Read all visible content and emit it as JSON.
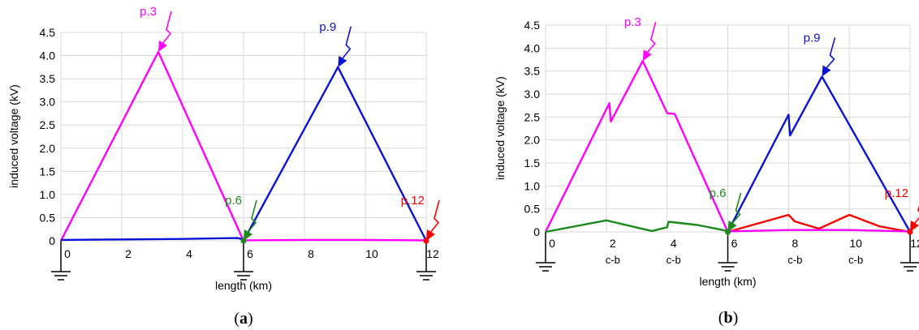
{
  "chart_data": [
    {
      "type": "line",
      "panel_label": "a",
      "xlabel": "length (km)",
      "ylabel": "induced voltage (kV)",
      "xlim": [
        0,
        12
      ],
      "ylim": [
        0,
        4.5
      ],
      "xticks": [
        "0",
        "2",
        "4",
        "6",
        "8",
        "10",
        "12"
      ],
      "yticks": [
        "0",
        "0.5",
        "1.0",
        "1.5",
        "2.0",
        "2.5",
        "3.0",
        "3.5",
        "4.0",
        "4.5"
      ],
      "grid": true,
      "colors": {
        "magenta": "#ff00ff",
        "blue": "#0a12d6",
        "green": "#1a8a1a",
        "red": "#ff0000"
      },
      "series": [
        {
          "color": "magenta",
          "x": [
            0,
            3.2,
            6
          ],
          "y": [
            0,
            4.08,
            0
          ]
        },
        {
          "color": "blue",
          "x": [
            6,
            9.1,
            12
          ],
          "y": [
            0,
            3.75,
            0
          ]
        },
        {
          "color": "blue",
          "x": [
            0,
            2,
            4,
            5.8,
            6
          ],
          "y": [
            0.02,
            0.03,
            0.04,
            0.06,
            0.03
          ]
        },
        {
          "color": "magenta",
          "x": [
            6,
            8,
            10,
            12
          ],
          "y": [
            0.01,
            0.02,
            0.02,
            0.01
          ]
        }
      ],
      "strikes": [
        {
          "label": "p.3",
          "color": "magenta",
          "x": 3.2,
          "y": 4.08
        },
        {
          "label": "p.6",
          "color": "green",
          "x": 6,
          "y": 0
        },
        {
          "label": "p.9",
          "color": "blue",
          "x": 9.1,
          "y": 3.75
        },
        {
          "label": "p.12",
          "color": "red",
          "x": 12,
          "y": 0
        }
      ],
      "grounds": [
        0,
        6,
        12
      ],
      "cb_labels": []
    },
    {
      "type": "line",
      "panel_label": "b",
      "xlabel": "length (km)",
      "ylabel": "induced voltage (kV)",
      "xlim": [
        0,
        12
      ],
      "ylim": [
        0,
        4.5
      ],
      "xticks": [
        "0",
        "2",
        "4",
        "6",
        "8",
        "10",
        "12"
      ],
      "yticks": [
        "0",
        "0.5",
        "1.0",
        "1.5",
        "2.0",
        "2.5",
        "3.0",
        "3.5",
        "4.0",
        "4.5"
      ],
      "grid": true,
      "colors": {
        "magenta": "#ff00ff",
        "blue": "#0a12d6",
        "green": "#1a8a1a",
        "red": "#ff0000"
      },
      "series": [
        {
          "color": "magenta",
          "x": [
            0,
            2.1,
            2.15,
            3.2,
            3.98,
            4.02,
            4.25,
            6
          ],
          "y": [
            0,
            2.8,
            2.4,
            3.72,
            2.62,
            2.58,
            2.57,
            0
          ]
        },
        {
          "color": "blue",
          "x": [
            6,
            8,
            8.05,
            9.1,
            12
          ],
          "y": [
            0,
            2.55,
            2.1,
            3.38,
            0
          ]
        },
        {
          "color": "green",
          "x": [
            0,
            2,
            3.5,
            4,
            4.05,
            5,
            6
          ],
          "y": [
            0,
            0.25,
            0.02,
            0.1,
            0.22,
            0.15,
            0.02
          ]
        },
        {
          "color": "red",
          "x": [
            6,
            8,
            8.2,
            9,
            10,
            11,
            12
          ],
          "y": [
            0,
            0.37,
            0.23,
            0.07,
            0.37,
            0.12,
            0
          ]
        },
        {
          "color": "magenta",
          "x": [
            6,
            8,
            10,
            12
          ],
          "y": [
            0.01,
            0.04,
            0.04,
            0.01
          ]
        }
      ],
      "strikes": [
        {
          "label": "p.3",
          "color": "magenta",
          "x": 3.2,
          "y": 3.72
        },
        {
          "label": "p.6",
          "color": "green",
          "x": 6,
          "y": 0
        },
        {
          "label": "p.9",
          "color": "blue",
          "x": 9.1,
          "y": 3.38
        },
        {
          "label": "p.12",
          "color": "red",
          "x": 12,
          "y": 0
        }
      ],
      "grounds": [
        0,
        6,
        12
      ],
      "cb_labels": [
        {
          "x": 2,
          "text": "c-b"
        },
        {
          "x": 4,
          "text": "c-b"
        },
        {
          "x": 8,
          "text": "c-b"
        },
        {
          "x": 10,
          "text": "c-b"
        }
      ]
    }
  ]
}
